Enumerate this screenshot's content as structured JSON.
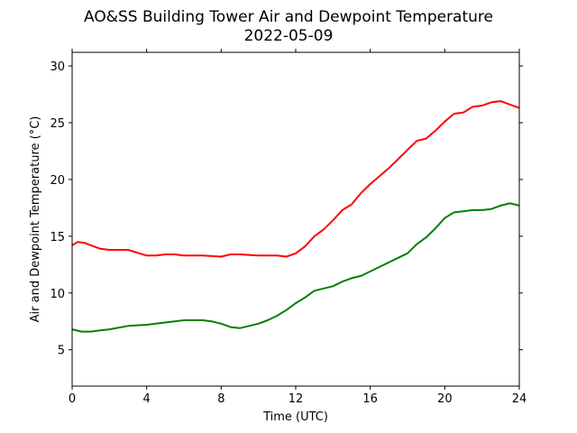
{
  "chart_data": {
    "type": "line",
    "title": "AO&SS Building Tower Air and Dewpoint Temperature",
    "subtitle": "2022-05-09",
    "xlabel": "Time (UTC)",
    "ylabel": "Air and Dewpoint Temperature (°C)",
    "xlim": [
      0,
      24
    ],
    "ylim": [
      1.8,
      31.2
    ],
    "xticks": [
      0,
      4,
      8,
      12,
      16,
      20,
      24
    ],
    "xtick_labels": [
      "0",
      "4",
      "8",
      "12",
      "16",
      "20",
      "24"
    ],
    "yticks": [
      5,
      10,
      15,
      20,
      25,
      30
    ],
    "ytick_labels": [
      "5",
      "10",
      "15",
      "20",
      "25",
      "30"
    ],
    "grid": false,
    "legend": "none",
    "series": [
      {
        "color": "#ff0000",
        "x": [
          0,
          0.3,
          0.7,
          1,
          1.5,
          2,
          3,
          4,
          4.5,
          5,
          5.5,
          6,
          7,
          8,
          8.5,
          9,
          10,
          11,
          11.5,
          12,
          12.5,
          13,
          13.5,
          14,
          14.5,
          15,
          15.5,
          16,
          16.5,
          17,
          17.5,
          18,
          18.5,
          19,
          19.5,
          20,
          20.5,
          21,
          21.5,
          22,
          22.5,
          23,
          23.5,
          24
        ],
        "y": [
          14.2,
          14.5,
          14.4,
          14.2,
          13.9,
          13.8,
          13.8,
          13.3,
          13.3,
          13.4,
          13.4,
          13.3,
          13.3,
          13.2,
          13.4,
          13.4,
          13.3,
          13.3,
          13.2,
          13.5,
          14.1,
          15.0,
          15.6,
          16.4,
          17.3,
          17.8,
          18.8,
          19.6,
          20.3,
          21.0,
          21.8,
          22.6,
          23.4,
          23.6,
          24.3,
          25.1,
          25.8,
          25.9,
          26.4,
          26.5,
          26.8,
          26.9,
          26.6,
          26.3
        ]
      },
      {
        "color": "#008000",
        "x": [
          0,
          0.5,
          1,
          1.5,
          2,
          3,
          4,
          4.5,
          5,
          5.5,
          6,
          6.5,
          7,
          7.5,
          8,
          8.5,
          9,
          9.5,
          10,
          10.5,
          11,
          11.5,
          12,
          12.5,
          13,
          13.5,
          14,
          14.5,
          15,
          15.5,
          16,
          16.5,
          17,
          17.5,
          18,
          18.5,
          19,
          19.5,
          20,
          20.5,
          21,
          21.5,
          22,
          22.5,
          23,
          23.5,
          24
        ],
        "y": [
          6.8,
          6.6,
          6.6,
          6.7,
          6.8,
          7.1,
          7.2,
          7.3,
          7.4,
          7.5,
          7.6,
          7.6,
          7.6,
          7.5,
          7.3,
          7.0,
          6.9,
          7.1,
          7.3,
          7.6,
          8.0,
          8.5,
          9.1,
          9.6,
          10.2,
          10.4,
          10.6,
          11.0,
          11.3,
          11.5,
          11.9,
          12.3,
          12.7,
          13.1,
          13.5,
          14.3,
          14.9,
          15.7,
          16.6,
          17.1,
          17.2,
          17.3,
          17.3,
          17.4,
          17.7,
          17.9,
          17.7
        ]
      }
    ]
  }
}
